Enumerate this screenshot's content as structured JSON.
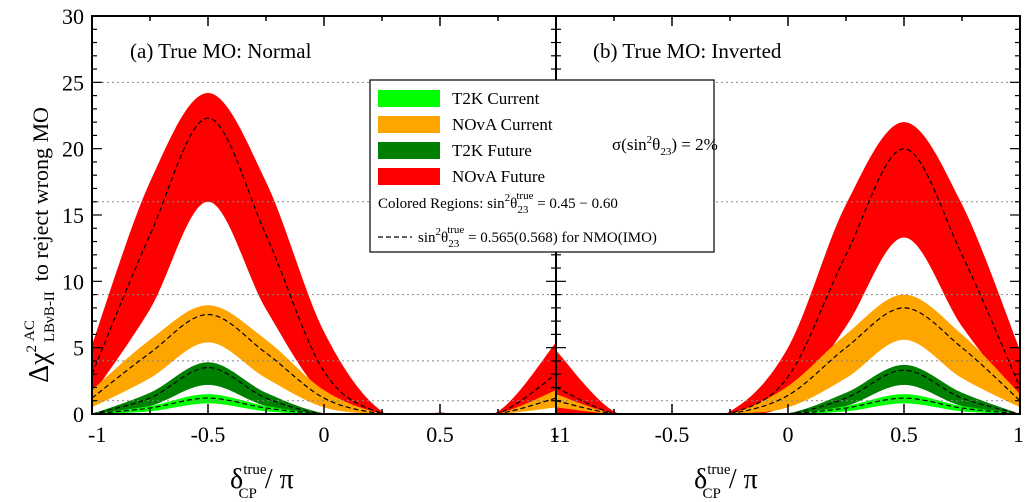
{
  "chart_data": [
    {
      "type": "area",
      "panel_label": "(a) True MO: Normal",
      "xlim": [
        -1,
        1
      ],
      "ylim": [
        0,
        30
      ],
      "xticks": [
        "-1",
        "-0.5",
        "0",
        "0.5",
        "1"
      ],
      "yticks": [
        "0",
        "5",
        "10",
        "15",
        "20",
        "25",
        "30"
      ],
      "reference_lines_y": [
        1,
        4,
        9,
        16,
        25
      ],
      "series": [
        {
          "name": "NOvA Future",
          "color": "#ff0000",
          "x": [
            -1,
            -0.75,
            -0.5,
            -0.25,
            0,
            0.25,
            0.5,
            0.75,
            1
          ],
          "lower": [
            1.4,
            7.9,
            16,
            7.9,
            1.4,
            0,
            0,
            0,
            0.9
          ],
          "upper": [
            5.2,
            17.5,
            24.2,
            17.5,
            6.2,
            0.2,
            0.1,
            0.2,
            5.4
          ],
          "central": [
            3.0,
            13.5,
            22.3,
            13.5,
            3.2,
            0.05,
            0.05,
            0.05,
            3.0
          ]
        },
        {
          "name": "NOvA Current",
          "color": "#ffa500",
          "x": [
            -1,
            -0.75,
            -0.5,
            -0.25,
            0,
            0.25,
            0.5,
            0.75,
            1
          ],
          "lower": [
            0.5,
            2.7,
            5.4,
            2.7,
            0.5,
            0,
            0,
            0,
            0.5
          ],
          "upper": [
            1.8,
            5.6,
            8.2,
            5.6,
            1.8,
            0.05,
            0,
            0.05,
            1.8
          ],
          "central": [
            1.2,
            4.6,
            7.5,
            4.6,
            1.2,
            0.03,
            0,
            0.03,
            1.2
          ]
        },
        {
          "name": "T2K Future",
          "color": "#008000",
          "x": [
            -1,
            -0.75,
            -0.5,
            -0.25,
            0,
            0.25,
            0.5,
            0.75,
            1
          ],
          "lower": [
            0,
            0.6,
            2.2,
            0.6,
            0,
            0,
            0,
            0,
            0
          ],
          "upper": [
            0,
            1.6,
            3.9,
            1.6,
            0.05,
            0,
            0,
            0,
            0
          ],
          "central": [
            0,
            1.2,
            3.5,
            1.2,
            0,
            0,
            0,
            0,
            0
          ]
        },
        {
          "name": "T2K Current",
          "color": "#00ff00",
          "x": [
            -1,
            -0.75,
            -0.5,
            -0.25,
            0,
            0.25,
            0.5,
            0.75,
            1
          ],
          "lower": [
            0,
            0.2,
            0.8,
            0.2,
            0,
            0,
            0,
            0,
            0
          ],
          "upper": [
            0,
            0.6,
            1.5,
            0.6,
            0,
            0,
            0,
            0,
            0
          ],
          "central": [
            0,
            0.45,
            1.2,
            0.45,
            0,
            0,
            0,
            0,
            0
          ]
        }
      ]
    },
    {
      "type": "area",
      "panel_label": "(b) True MO: Inverted",
      "xlim": [
        -1,
        1
      ],
      "ylim": [
        0,
        30
      ],
      "xticks": [
        "-1",
        "-0.5",
        "0",
        "0.5",
        "1"
      ],
      "yticks": [],
      "reference_lines_y": [
        1,
        4,
        9,
        16,
        25
      ],
      "series": [
        {
          "name": "NOvA Future",
          "color": "#ff0000",
          "x": [
            -1,
            -0.75,
            -0.5,
            -0.25,
            0,
            0.25,
            0.5,
            0.75,
            1
          ],
          "lower": [
            0,
            0,
            0,
            0,
            0.8,
            6.6,
            13.3,
            6.6,
            0.9
          ],
          "upper": [
            4.8,
            0.2,
            0.05,
            0.2,
            5.0,
            15.8,
            22.0,
            15.8,
            4.8
          ],
          "central": [
            2.0,
            0.05,
            0,
            0.05,
            2.8,
            12.0,
            20.0,
            12.0,
            2.0
          ]
        },
        {
          "name": "NOvA Current",
          "color": "#ffa500",
          "x": [
            -1,
            -0.75,
            -0.5,
            -0.25,
            0,
            0.25,
            0.5,
            0.75,
            1
          ],
          "lower": [
            0.5,
            0,
            0,
            0,
            0.5,
            2.7,
            5.6,
            2.7,
            0.5
          ],
          "upper": [
            1.5,
            0.05,
            0,
            0.05,
            2.1,
            6.0,
            9.0,
            6.0,
            1.5
          ],
          "central": [
            1.0,
            0.03,
            0,
            0.03,
            1.4,
            5.0,
            8.0,
            5.0,
            1.0
          ]
        },
        {
          "name": "T2K Future",
          "color": "#008000",
          "x": [
            -1,
            -0.75,
            -0.5,
            -0.25,
            0,
            0.25,
            0.5,
            0.75,
            1
          ],
          "lower": [
            0,
            0,
            0,
            0,
            0,
            0.6,
            2.2,
            0.6,
            0
          ],
          "upper": [
            0,
            0,
            0,
            0,
            0.05,
            1.6,
            3.7,
            1.6,
            0
          ],
          "central": [
            0,
            0,
            0,
            0,
            0,
            1.2,
            3.3,
            1.2,
            0
          ]
        },
        {
          "name": "T2K Current",
          "color": "#00ff00",
          "x": [
            -1,
            -0.75,
            -0.5,
            -0.25,
            0,
            0.25,
            0.5,
            0.75,
            1
          ],
          "lower": [
            0,
            0,
            0,
            0,
            0,
            0.2,
            0.8,
            0.2,
            0
          ],
          "upper": [
            0,
            0,
            0,
            0,
            0,
            0.6,
            1.5,
            0.6,
            0
          ],
          "central": [
            0,
            0,
            0,
            0,
            0,
            0.45,
            1.2,
            0.45,
            0
          ]
        }
      ]
    }
  ],
  "axes": {
    "y_main": "Δχ",
    "y_sup": "2",
    "y_over": "AC",
    "y_sub": "LBνB-II",
    "y_rest": "to reject wrong MO",
    "x_main": "δ",
    "x_sup": "true",
    "x_sub": "CP",
    "x_rest": "/ π"
  },
  "legend": {
    "entries": [
      {
        "label": "T2K Current",
        "color": "#00ff00"
      },
      {
        "label": "NOvA Current",
        "color": "#ffa500"
      },
      {
        "label": "T2K Future",
        "color": "#008000"
      },
      {
        "label": "NOvA Future",
        "color": "#ff0000"
      }
    ],
    "sigma": {
      "open": "σ(sin",
      "sup": "2",
      "theta": "θ",
      "sub": "23",
      "close": ") = 2%"
    },
    "regions": {
      "prefix": "Colored Regions: sin",
      "sup": "2",
      "theta": "θ",
      "sub": "23",
      "sup2": "true",
      "value": " = 0.45 − 0.60"
    },
    "dashed": {
      "prefix": "sin",
      "sup": "2",
      "theta": "θ",
      "sub": "23",
      "sup2": "true",
      "value": " = 0.565(0.568) for NMO(IMO)"
    }
  }
}
